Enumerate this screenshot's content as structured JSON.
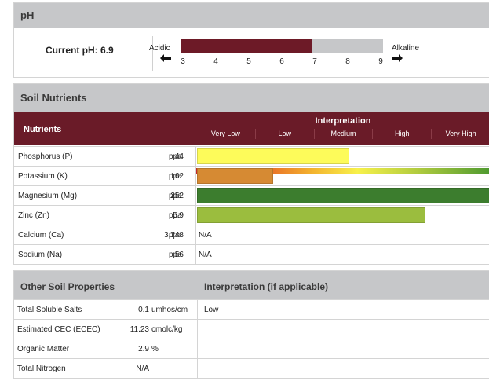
{
  "ph": {
    "title": "pH",
    "current_label": "Current pH: 6.9",
    "current_value": 6.9,
    "acidic_label": "Acidic",
    "alkaline_label": "Alkaline",
    "ticks": [
      "3",
      "4",
      "5",
      "6",
      "7",
      "8",
      "9"
    ],
    "scale_min": 3,
    "scale_max": 9,
    "left_arrow": "🡐",
    "right_arrow": "🡒",
    "bar_color": "#6d1a27",
    "track_color": "#c6c7c9"
  },
  "nutrients": {
    "title": "Soil Nutrients",
    "column_label": "Nutrients",
    "interpretation_label": "Interpretation",
    "categories": [
      "Very Low",
      "Low",
      "Medium",
      "High",
      "Very High"
    ],
    "rows": [
      {
        "name": "Phosphorus (P)",
        "value": "44",
        "unit": "ppa",
        "level": 0.52,
        "color": "#fdfb5a"
      },
      {
        "name": "Potassium (K)",
        "value": "162",
        "unit": "ppa",
        "level": 0.26,
        "color": "#d68a33"
      },
      {
        "name": "Magnesium (Mg)",
        "value": "252",
        "unit": "ppa",
        "level": 1.0,
        "color": "#3c7d2e"
      },
      {
        "name": "Zinc (Zn)",
        "value": "5.9",
        "unit": "ppa",
        "level": 0.78,
        "color": "#9bbd3e"
      },
      {
        "name": "Calcium (Ca)",
        "value": "3,748",
        "unit": "ppa",
        "interp": "N/A"
      },
      {
        "name": "Sodium (Na)",
        "value": "56",
        "unit": "ppa",
        "interp": "N/A"
      }
    ]
  },
  "other": {
    "title": "Other Soil Properties",
    "interpretation_label": "Interpretation (if applicable)",
    "rows": [
      {
        "name": "Total Soluble Salts",
        "value": "0.1",
        "unit": "umhos/cm",
        "interp": "Low"
      },
      {
        "name": "Estimated CEC (ECEC)",
        "value": "11.23",
        "unit": "cmolc/kg",
        "interp": ""
      },
      {
        "name": "Organic Matter",
        "value": "2.9",
        "unit": "%",
        "interp": ""
      },
      {
        "name": "Total Nitrogen",
        "value": "N/A",
        "unit": "",
        "interp": ""
      }
    ]
  }
}
